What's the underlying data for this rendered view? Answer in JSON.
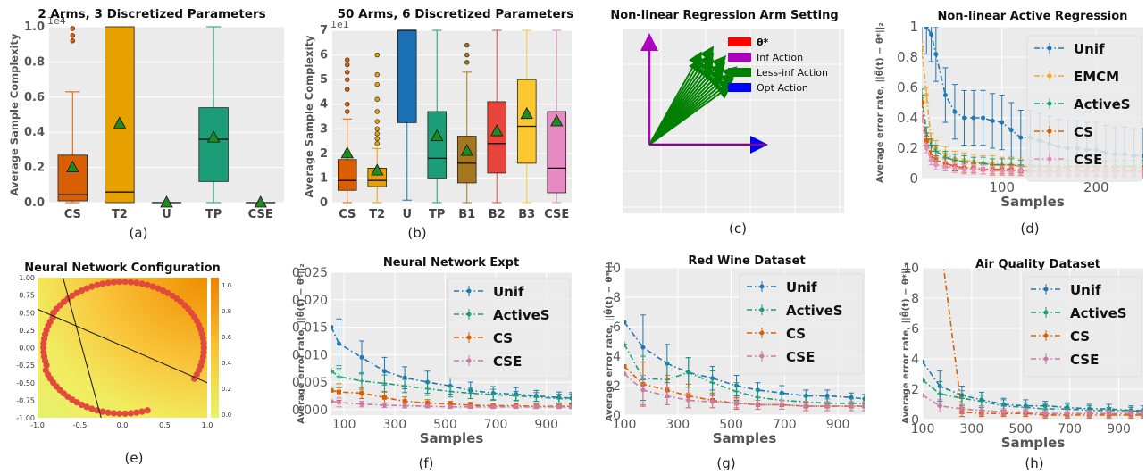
{
  "panel_labels": [
    "(a)",
    "(b)",
    "(c)",
    "(d)",
    "(e)",
    "(f)",
    "(g)",
    "(h)"
  ],
  "colors": {
    "CS": "#d95f02",
    "T2": "#e6a000",
    "U": "#1b6fb5",
    "TP": "#1b9e77",
    "CSE": "#e78ac3",
    "B1": "#a6761d",
    "B2": "#e7443b",
    "B3": "#fdc82f",
    "Unif": "#1f77b4",
    "EMCM": "#f0a830",
    "ActiveS": "#1b9e77",
    "pink": "#cc79a7"
  },
  "chart_data": [
    {
      "panel": "a",
      "type": "box",
      "title": "2 Arms, 3 Discretized Parameters",
      "ylabel": "Average Sample Complexity",
      "yscale_label": "1e4",
      "ylim": [
        0,
        1.0
      ],
      "yticks": [
        "0.0",
        "0.2",
        "0.4",
        "0.6",
        "0.8",
        "1.0"
      ],
      "categories": [
        "CS",
        "T2",
        "U",
        "TP",
        "CSE"
      ],
      "boxes": [
        {
          "name": "CS",
          "q1": 0.01,
          "median": 0.045,
          "q3": 0.27,
          "whislo": 0.0,
          "whishi": 0.63,
          "mean": 0.2,
          "outliers": [
            0.92,
            0.95,
            0.99
          ]
        },
        {
          "name": "T2",
          "q1": 0.0,
          "median": 0.06,
          "q3": 1.0,
          "whislo": 0.0,
          "whishi": 1.0,
          "mean": 0.45,
          "outliers": []
        },
        {
          "name": "U",
          "q1": 0.0,
          "median": 0.0,
          "q3": 0.0,
          "whislo": 0.0,
          "whishi": 0.0,
          "mean": 0.0,
          "outliers": []
        },
        {
          "name": "TP",
          "q1": 0.12,
          "median": 0.36,
          "q3": 0.54,
          "whislo": 0.0,
          "whishi": 1.0,
          "mean": 0.37,
          "outliers": []
        },
        {
          "name": "CSE",
          "q1": 0.0,
          "median": 0.0,
          "q3": 0.0,
          "whislo": 0.0,
          "whishi": 0.0,
          "mean": 0.0,
          "outliers": []
        }
      ]
    },
    {
      "panel": "b",
      "type": "box",
      "title": "50 Arms, 6 Discretized Parameters",
      "ylabel": "Average Sample Complexity",
      "yscale_label": "1e1",
      "ylim": [
        0,
        7
      ],
      "yticks": [
        "0",
        "1",
        "2",
        "3",
        "4",
        "5",
        "6",
        "7"
      ],
      "categories": [
        "CS",
        "T2",
        "U",
        "TP",
        "B1",
        "B2",
        "B3",
        "CSE"
      ],
      "boxes": [
        {
          "name": "CS",
          "q1": 0.5,
          "median": 0.9,
          "q3": 1.75,
          "whislo": 0.0,
          "whishi": 3.4,
          "mean": 2.0,
          "outliers": [
            3.7,
            4.0,
            4.6,
            5.0,
            5.3,
            5.6,
            5.8
          ]
        },
        {
          "name": "T2",
          "q1": 0.65,
          "median": 0.9,
          "q3": 1.4,
          "whislo": 0.0,
          "whishi": 2.2,
          "mean": 1.3,
          "outliers": [
            2.4,
            2.6,
            2.8,
            3.0,
            3.3,
            3.7,
            4.2,
            4.8,
            5.2,
            6.0
          ]
        },
        {
          "name": "U",
          "q1": 3.25,
          "median": 7.0,
          "q3": 7.0,
          "whislo": 0.1,
          "whishi": 7.0,
          "mean": null,
          "outliers": []
        },
        {
          "name": "TP",
          "q1": 1.0,
          "median": 1.8,
          "q3": 3.7,
          "whislo": 0.0,
          "whishi": 7.0,
          "mean": 2.7,
          "outliers": []
        },
        {
          "name": "B1",
          "q1": 0.8,
          "median": 1.6,
          "q3": 2.7,
          "whislo": 0.0,
          "whishi": 5.3,
          "mean": 2.1,
          "outliers": [
            5.7,
            6.0,
            6.4
          ]
        },
        {
          "name": "B2",
          "q1": 1.2,
          "median": 2.4,
          "q3": 4.1,
          "whislo": 0.0,
          "whishi": 7.0,
          "mean": 2.9,
          "outliers": []
        },
        {
          "name": "B3",
          "q1": 1.6,
          "median": 3.1,
          "q3": 5.0,
          "whislo": 0.0,
          "whishi": 7.0,
          "mean": 3.6,
          "outliers": []
        },
        {
          "name": "CSE",
          "q1": 0.4,
          "median": 1.4,
          "q3": 3.7,
          "whislo": 0.0,
          "whishi": 7.0,
          "mean": 3.3,
          "outliers": []
        }
      ]
    },
    {
      "panel": "c",
      "type": "vector-diagram",
      "title": "Non-linear Regression Arm Setting",
      "legend": [
        {
          "label": "θ*",
          "color": "#ff0000"
        },
        {
          "label": "Inf Action",
          "color": "#b000c0"
        },
        {
          "label": "Less-inf Action",
          "color": "#008000"
        },
        {
          "label": "Opt Action",
          "color": "#0000ff"
        }
      ]
    },
    {
      "panel": "d",
      "type": "line",
      "title": "Non-linear Active Regression",
      "xlabel": "Samples",
      "ylabel": "Average error rate, ||θ̂(t) − θ*||₂",
      "xlim": [
        15,
        250
      ],
      "ylim": [
        0,
        1.0
      ],
      "xticks": [
        100,
        200
      ],
      "yticks": [
        0.0,
        0.2,
        0.4,
        0.6,
        0.8,
        1.0
      ],
      "x": [
        15,
        20,
        25,
        30,
        40,
        50,
        60,
        70,
        80,
        90,
        100,
        110,
        120,
        130,
        140,
        150,
        160,
        170,
        180,
        190,
        200,
        210,
        220,
        230,
        240,
        250
      ],
      "series": [
        {
          "name": "Unif",
          "color": "#1f77b4",
          "values": [
            1.05,
            1.0,
            0.95,
            0.82,
            0.55,
            0.44,
            0.4,
            0.4,
            0.4,
            0.38,
            0.37,
            0.32,
            0.27,
            0.27,
            0.25,
            0.23,
            0.21,
            0.2,
            0.2,
            0.19,
            0.19,
            0.17,
            0.16,
            0.16,
            0.15,
            0.15
          ],
          "err": 0.18
        },
        {
          "name": "EMCM",
          "color": "#f0a830",
          "values": [
            0.85,
            0.55,
            0.25,
            0.2,
            0.16,
            0.13,
            0.12,
            0.11,
            0.1,
            0.1,
            0.09,
            0.09,
            0.08,
            0.08,
            0.08,
            0.08,
            0.07,
            0.07,
            0.07,
            0.07,
            0.07,
            0.07,
            0.07,
            0.07,
            0.07,
            0.07
          ],
          "err": 0.05
        },
        {
          "name": "ActiveS",
          "color": "#1b9e77",
          "values": [
            0.55,
            0.3,
            0.22,
            0.18,
            0.14,
            0.12,
            0.11,
            0.1,
            0.1,
            0.09,
            0.09,
            0.09,
            0.08,
            0.08,
            0.08,
            0.08,
            0.08,
            0.08,
            0.08,
            0.08,
            0.08,
            0.08,
            0.08,
            0.08,
            0.08,
            0.08
          ],
          "err": 0.04
        },
        {
          "name": "CS",
          "color": "#d95f02",
          "values": [
            0.5,
            0.25,
            0.15,
            0.12,
            0.1,
            0.08,
            0.07,
            0.07,
            0.06,
            0.06,
            0.06,
            0.06,
            0.05,
            0.05,
            0.05,
            0.05,
            0.05,
            0.05,
            0.05,
            0.05,
            0.05,
            0.05,
            0.05,
            0.05,
            0.05,
            0.05
          ],
          "err": 0.03
        },
        {
          "name": "CSE",
          "color": "#e78ac3",
          "values": [
            0.4,
            0.2,
            0.12,
            0.09,
            0.08,
            0.07,
            0.06,
            0.06,
            0.06,
            0.05,
            0.05,
            0.05,
            0.05,
            0.05,
            0.04,
            0.04,
            0.04,
            0.04,
            0.04,
            0.04,
            0.04,
            0.04,
            0.04,
            0.04,
            0.04,
            0.04
          ],
          "err": 0.03
        }
      ]
    },
    {
      "panel": "e",
      "type": "heatmap",
      "title": "Neural Network Configuration",
      "xlim": [
        -1.0,
        1.0
      ],
      "ylim": [
        -1.0,
        1.0
      ],
      "xticks": [
        "-1.0",
        "-0.5",
        "0.0",
        "0.5",
        "1.0"
      ],
      "yticks": [
        "1.00",
        "0.75",
        "0.50",
        "0.25",
        "0.00",
        "-0.25",
        "-0.50",
        "-0.75",
        "-1.00"
      ],
      "colorbar_ticks": [
        "1.0",
        "0.8",
        "0.6",
        "0.4",
        "0.2",
        "0.0"
      ]
    },
    {
      "panel": "f",
      "type": "line",
      "title": "Neural Network Expt",
      "xlabel": "Samples",
      "ylabel": "Average error rate, ||θ̂(t) − θ*||₂",
      "xlim": [
        50,
        1000
      ],
      "ylim": [
        -0.001,
        0.025
      ],
      "xticks": [
        100,
        300,
        500,
        700,
        900
      ],
      "yticks": [
        "0.000",
        "0.005",
        "0.010",
        "0.015",
        "0.020",
        "0.025"
      ],
      "x": [
        50,
        80,
        170,
        260,
        340,
        430,
        520,
        600,
        690,
        780,
        860,
        950,
        1000
      ],
      "series": [
        {
          "name": "Unif",
          "color": "#1f77b4",
          "values": [
            0.015,
            0.012,
            0.0095,
            0.007,
            0.0058,
            0.005,
            0.0043,
            0.0035,
            0.003,
            0.0028,
            0.0025,
            0.0022,
            0.0021
          ],
          "err": [
            0.0,
            0.0045,
            0.003,
            0.0025,
            0.002,
            0.002,
            0.0015,
            0.0015,
            0.0012,
            0.0012,
            0.001,
            0.001,
            0.001
          ]
        },
        {
          "name": "ActiveS",
          "color": "#1b9e77",
          "values": [
            0.007,
            0.006,
            0.0052,
            0.0048,
            0.0043,
            0.0038,
            0.0033,
            0.003,
            0.0027,
            0.0025,
            0.0023,
            0.002,
            0.002
          ],
          "err": [
            0.0,
            0.002,
            0.0015,
            0.0015,
            0.0012,
            0.0012,
            0.001,
            0.001,
            0.001,
            0.0008,
            0.0008,
            0.0008,
            0.0008
          ]
        },
        {
          "name": "CS",
          "color": "#d95f02",
          "values": [
            0.0035,
            0.0032,
            0.003,
            0.0022,
            0.0015,
            0.0012,
            0.001,
            0.0008,
            0.0007,
            0.0007,
            0.0006,
            0.0006,
            0.0006
          ],
          "err": [
            0.0,
            0.0015,
            0.001,
            0.001,
            0.0008,
            0.0006,
            0.0005,
            0.0005,
            0.0004,
            0.0004,
            0.0004,
            0.0004,
            0.0004
          ]
        },
        {
          "name": "CSE",
          "color": "#cc79a7",
          "values": [
            0.0015,
            0.0013,
            0.001,
            0.0008,
            0.0007,
            0.0006,
            0.0005,
            0.0005,
            0.0005,
            0.0005,
            0.0005,
            0.0005,
            0.0005
          ],
          "err": [
            0.0,
            0.0008,
            0.0005,
            0.0004,
            0.0004,
            0.0003,
            0.0003,
            0.0003,
            0.0003,
            0.0003,
            0.0003,
            0.0003,
            0.0003
          ]
        }
      ]
    },
    {
      "panel": "g",
      "type": "line",
      "title": "Red Wine Dataset",
      "xlabel": "Samples",
      "ylabel": "Average error rate, ||θ̂(t) − θ*||₂",
      "xlim": [
        100,
        1000
      ],
      "ylim": [
        0,
        10
      ],
      "xticks": [
        100,
        300,
        500,
        700,
        900
      ],
      "yticks": [
        "0",
        "2",
        "4",
        "6",
        "8",
        "10"
      ],
      "x": [
        100,
        170,
        260,
        340,
        430,
        520,
        600,
        690,
        780,
        860,
        950,
        1000
      ],
      "series": [
        {
          "name": "Unif",
          "color": "#1f77b4",
          "values": [
            6.3,
            4.6,
            3.5,
            2.9,
            2.5,
            2.0,
            1.7,
            1.5,
            1.3,
            1.3,
            1.2,
            1.1
          ],
          "err": [
            0.0,
            2.2,
            1.3,
            1.0,
            0.8,
            0.7,
            0.5,
            0.5,
            0.4,
            0.4,
            0.3,
            0.3
          ]
        },
        {
          "name": "ActiveS",
          "color": "#1b9e77",
          "values": [
            4.8,
            2.5,
            2.4,
            2.9,
            2.2,
            1.6,
            1.2,
            1.0,
            0.9,
            0.8,
            0.8,
            0.8
          ],
          "err": [
            0.0,
            1.5,
            1.2,
            1.0,
            0.8,
            0.6,
            0.5,
            0.4,
            0.4,
            0.3,
            0.3,
            0.3
          ]
        },
        {
          "name": "CS",
          "color": "#d95f02",
          "values": [
            3.3,
            2.1,
            1.7,
            1.3,
            1.0,
            0.8,
            0.7,
            0.7,
            0.6,
            0.6,
            0.6,
            0.6
          ],
          "err": [
            0.0,
            1.5,
            1.0,
            0.8,
            0.5,
            0.4,
            0.3,
            0.3,
            0.3,
            0.3,
            0.3,
            0.3
          ]
        },
        {
          "name": "CSE",
          "color": "#cc79a7",
          "values": [
            2.8,
            1.7,
            1.3,
            1.0,
            0.9,
            0.8,
            0.7,
            0.7,
            0.6,
            0.6,
            0.6,
            0.6
          ],
          "err": [
            0.0,
            1.0,
            0.6,
            0.5,
            0.4,
            0.3,
            0.3,
            0.3,
            0.3,
            0.3,
            0.3,
            0.3
          ]
        }
      ]
    },
    {
      "panel": "h",
      "type": "line",
      "title": "Air Quality Dataset",
      "xlabel": "Samples",
      "ylabel": "Average error rate, ||θ̂(t) − θ*||₂",
      "xlim": [
        100,
        1000
      ],
      "ylim": [
        0,
        10
      ],
      "xticks": [
        100,
        300,
        500,
        700,
        900
      ],
      "yticks": [
        "0",
        "2",
        "4",
        "6",
        "8",
        "10"
      ],
      "x": [
        100,
        170,
        260,
        340,
        430,
        520,
        600,
        690,
        780,
        860,
        950,
        1000
      ],
      "series": [
        {
          "name": "Unif",
          "color": "#1f77b4",
          "values": [
            3.8,
            2.2,
            1.6,
            1.3,
            1.0,
            0.9,
            0.9,
            0.8,
            0.7,
            0.7,
            0.6,
            0.6
          ],
          "err": [
            0.0,
            1.0,
            0.6,
            0.5,
            0.4,
            0.4,
            0.3,
            0.3,
            0.3,
            0.3,
            0.3,
            0.3
          ]
        },
        {
          "name": "ActiveS",
          "color": "#1b9e77",
          "values": [
            2.6,
            1.7,
            1.4,
            1.2,
            0.9,
            0.8,
            0.7,
            0.7,
            0.6,
            0.6,
            0.6,
            0.5
          ],
          "err": [
            0.0,
            0.8,
            0.5,
            0.4,
            0.4,
            0.3,
            0.3,
            0.3,
            0.3,
            0.2,
            0.2,
            0.2
          ]
        },
        {
          "name": "CS",
          "color": "#d95f02",
          "values": [
            null,
            12.0,
            0.5,
            0.4,
            0.4,
            0.4,
            0.3,
            0.3,
            0.3,
            0.3,
            0.3,
            0.3
          ],
          "err": [
            0.0,
            0.0,
            0.3,
            0.2,
            0.2,
            0.2,
            0.2,
            0.2,
            0.2,
            0.2,
            0.2,
            0.2
          ]
        },
        {
          "name": "CSE",
          "color": "#cc79a7",
          "values": [
            1.6,
            0.9,
            0.7,
            0.6,
            0.5,
            0.5,
            0.4,
            0.4,
            0.4,
            0.4,
            0.4,
            0.4
          ],
          "err": [
            0.0,
            0.4,
            0.3,
            0.3,
            0.2,
            0.2,
            0.2,
            0.2,
            0.2,
            0.2,
            0.2,
            0.2
          ]
        }
      ]
    }
  ]
}
